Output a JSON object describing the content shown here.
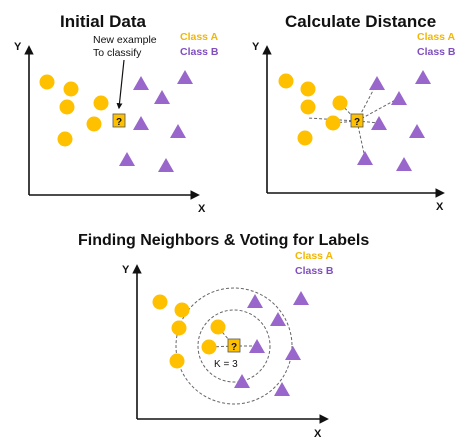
{
  "colors": {
    "class_a": "#FFC000",
    "class_a_text": "#F2B705",
    "class_b": "#9966CC",
    "class_b_text": "#7F4FBF",
    "axis": "#111111",
    "dashed": "#666666"
  },
  "panels": [
    {
      "title": "Initial Data",
      "x_label": "X",
      "y_label": "Y",
      "legend": {
        "a": "Class A",
        "b": "Class B"
      },
      "annotation": [
        "New example",
        "To classify"
      ],
      "query_label": "?"
    },
    {
      "title": "Calculate Distance",
      "x_label": "X",
      "y_label": "Y",
      "legend": {
        "a": "Class A",
        "b": "Class B"
      },
      "query_label": "?"
    },
    {
      "title": "Finding Neighbors & Voting for Labels",
      "x_label": "X",
      "y_label": "Y",
      "legend": {
        "a": "Class A",
        "b": "Class B"
      },
      "query_label": "?",
      "k_label": "K = 3"
    }
  ]
}
